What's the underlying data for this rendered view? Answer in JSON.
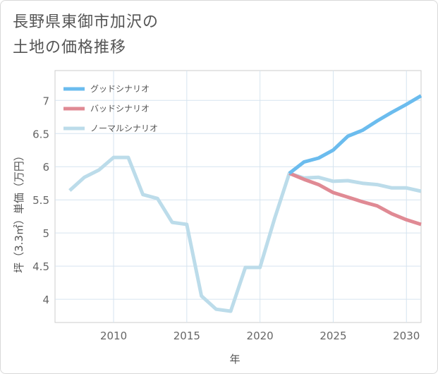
{
  "chart_data": {
    "type": "line",
    "title": [
      "長野県東御市加沢の",
      "土地の価格推移"
    ],
    "xlabel": "年",
    "ylabel": "坪（3.3㎡）単価（万円）",
    "xlim": [
      2006,
      2031
    ],
    "ylim": [
      3.65,
      7.45
    ],
    "xticks": [
      2010,
      2015,
      2020,
      2025,
      2030
    ],
    "yticks": [
      4,
      4.5,
      5,
      5.5,
      6,
      6.5,
      7
    ],
    "ytick_labels": [
      "4",
      "4.5",
      "5",
      "5.5",
      "6",
      "6.5",
      "7"
    ],
    "grid": true,
    "legend_position": "top-left",
    "series": [
      {
        "name": "グッドシナリオ",
        "color": "#6bbcee",
        "x": [
          2022,
          2023,
          2024,
          2025,
          2026,
          2027,
          2028,
          2029,
          2030,
          2031
        ],
        "y": [
          5.9,
          6.07,
          6.13,
          6.25,
          6.46,
          6.55,
          6.69,
          6.82,
          6.94,
          7.07
        ]
      },
      {
        "name": "バッドシナリオ",
        "color": "#e08a94",
        "x": [
          2022,
          2023,
          2024,
          2025,
          2026,
          2027,
          2028,
          2029,
          2030,
          2031
        ],
        "y": [
          5.9,
          5.81,
          5.73,
          5.61,
          5.54,
          5.47,
          5.41,
          5.29,
          5.2,
          5.13
        ]
      },
      {
        "name": "ノーマルシナリオ",
        "color": "#bcdcea",
        "x": [
          2007,
          2008,
          2009,
          2010,
          2011,
          2012,
          2013,
          2014,
          2015,
          2016,
          2017,
          2018,
          2019,
          2020,
          2021,
          2022,
          2023,
          2024,
          2025,
          2026,
          2027,
          2028,
          2029,
          2030,
          2031
        ],
        "y": [
          5.64,
          5.84,
          5.95,
          6.14,
          6.14,
          5.58,
          5.52,
          5.16,
          5.13,
          4.05,
          3.85,
          3.82,
          4.48,
          4.48,
          5.22,
          5.9,
          5.83,
          5.84,
          5.78,
          5.79,
          5.75,
          5.73,
          5.68,
          5.68,
          5.63
        ]
      }
    ]
  }
}
